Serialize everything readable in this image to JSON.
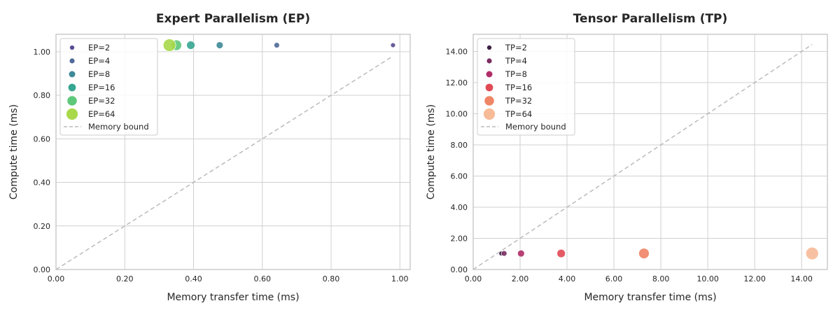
{
  "chart_data": [
    {
      "type": "scatter",
      "title": "Expert Parallelism (EP)",
      "xlabel": "Memory transfer time (ms)",
      "ylabel": "Compute time (ms)",
      "xlim": [
        0,
        1.03
      ],
      "ylim": [
        0,
        1.08
      ],
      "xticks": [
        "0.00",
        "0.20",
        "0.40",
        "0.60",
        "0.80",
        "1.00"
      ],
      "yticks": [
        "0.00",
        "0.20",
        "0.40",
        "0.60",
        "0.80",
        "1.00"
      ],
      "grid": true,
      "legend_placement": "top-left",
      "series": [
        {
          "name": "EP=2",
          "x": 0.98,
          "y": 1.03,
          "color": "#5a4b91",
          "size": 3.5
        },
        {
          "name": "EP=4",
          "x": 0.642,
          "y": 1.03,
          "color": "#506b98",
          "size": 4
        },
        {
          "name": "EP=8",
          "x": 0.476,
          "y": 1.03,
          "color": "#3f8a99",
          "size": 5
        },
        {
          "name": "EP=16",
          "x": 0.392,
          "y": 1.03,
          "color": "#36a692",
          "size": 6
        },
        {
          "name": "EP=32",
          "x": 0.35,
          "y": 1.03,
          "color": "#5ec87a",
          "size": 7.5
        },
        {
          "name": "EP=64",
          "x": 0.33,
          "y": 1.03,
          "color": "#a9d94a",
          "size": 9
        }
      ],
      "reference_line": {
        "name": "Memory bound",
        "x": [
          0,
          0.98
        ],
        "y": [
          0,
          0.98
        ],
        "color": "#bbbbbb"
      }
    },
    {
      "type": "scatter",
      "title": "Tensor Parallelism (TP)",
      "xlabel": "Memory transfer time (ms)",
      "ylabel": "Compute time (ms)",
      "xlim": [
        0,
        15.1
      ],
      "ylim": [
        0,
        15.1
      ],
      "xticks": [
        "0.00",
        "2.00",
        "4.00",
        "6.00",
        "8.00",
        "10.00",
        "12.00",
        "14.00"
      ],
      "yticks": [
        "0.00",
        "2.00",
        "4.00",
        "6.00",
        "8.00",
        "10.00",
        "12.00",
        "14.00"
      ],
      "grid": true,
      "legend_placement": "top-left",
      "series": [
        {
          "name": "TP=2",
          "x": 1.2,
          "y": 1.03,
          "color": "#3d1f45",
          "size": 3.5
        },
        {
          "name": "TP=4",
          "x": 1.32,
          "y": 1.03,
          "color": "#7a2e62",
          "size": 4
        },
        {
          "name": "TP=8",
          "x": 2.04,
          "y": 1.03,
          "color": "#b12e68",
          "size": 5
        },
        {
          "name": "TP=16",
          "x": 3.75,
          "y": 1.03,
          "color": "#e04a55",
          "size": 6
        },
        {
          "name": "TP=32",
          "x": 7.28,
          "y": 1.03,
          "color": "#f08565",
          "size": 7.5
        },
        {
          "name": "TP=64",
          "x": 14.45,
          "y": 1.03,
          "color": "#f7bb97",
          "size": 9
        }
      ],
      "reference_line": {
        "name": "Memory bound",
        "x": [
          0,
          14.45
        ],
        "y": [
          0,
          14.45
        ],
        "color": "#bbbbbb"
      }
    }
  ]
}
